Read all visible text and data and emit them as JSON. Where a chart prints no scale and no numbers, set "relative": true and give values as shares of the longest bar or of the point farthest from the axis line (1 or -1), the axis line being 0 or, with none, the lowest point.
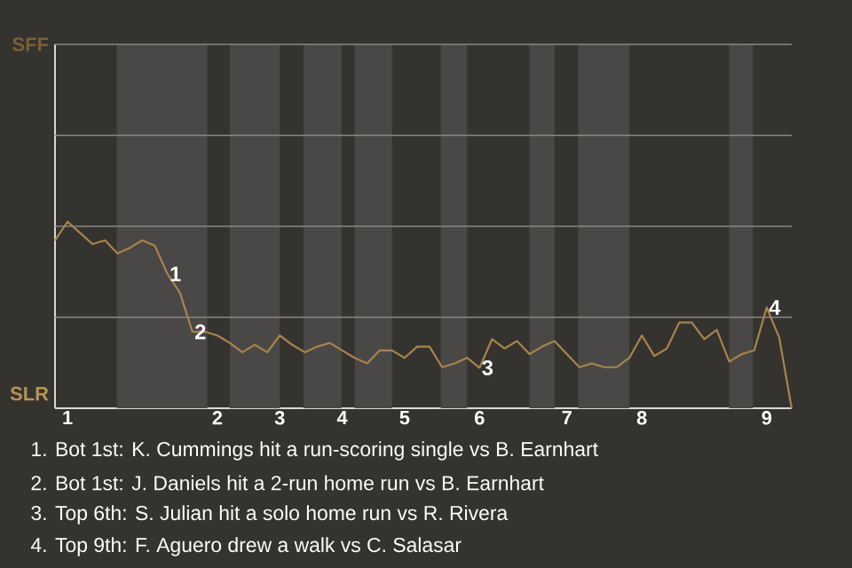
{
  "chart_data": {
    "type": "line",
    "relative": true,
    "categories": [
      null,
      "1",
      null,
      null,
      null,
      null,
      null,
      null,
      null,
      null,
      null,
      null,
      null,
      "2",
      null,
      null,
      null,
      null,
      "3",
      null,
      null,
      null,
      null,
      "4",
      null,
      null,
      null,
      null,
      "5",
      null,
      null,
      null,
      null,
      null,
      "6",
      null,
      null,
      null,
      null,
      null,
      null,
      "7",
      null,
      null,
      null,
      null,
      null,
      "8",
      null,
      null,
      null,
      null,
      null,
      null,
      null,
      null,
      null,
      "9",
      null,
      null
    ],
    "series": [
      {
        "color": "#a8844a",
        "values": [
          0.9,
          1,
          0.94,
          0.88,
          0.9,
          0.83,
          0.86,
          0.9,
          0.87,
          0.72,
          0.62,
          0.41,
          0.41,
          0.39,
          0.35,
          0.3,
          0.34,
          0.3,
          0.39,
          0.34,
          0.3,
          0.33,
          0.35,
          0.31,
          0.27,
          0.24,
          0.31,
          0.31,
          0.27,
          0.33,
          0.33,
          0.22,
          0.24,
          0.27,
          0.217,
          0.37,
          0.32,
          0.36,
          0.29,
          0.33,
          0.36,
          0.29,
          0.22,
          0.24,
          0.22,
          0.22,
          0.27,
          0.39,
          0.28,
          0.32,
          0.46,
          0.46,
          0.37,
          0.42,
          0.25,
          0.29,
          0.31,
          0.54,
          0.38,
          0
        ]
      }
    ],
    "ref_lines": [
      {
        "axis": "y",
        "value": 0.4875,
        "color": "#8a8885"
      },
      {
        "axis": "y",
        "value": 0.975,
        "color": "#8a8885"
      },
      {
        "axis": "y",
        "value": 1.4625,
        "color": "#8a8885"
      }
    ],
    "annotations": [
      "SFF",
      "SLR",
      {
        "text": "1",
        "y": 0.72
      },
      {
        "text": "2",
        "y": 0.41
      },
      {
        "text": "3",
        "y": 0.217
      },
      {
        "text": "4",
        "y": 0.54
      },
      "1. Bot 1st: K. Cummings hit a run-scoring single vs B. Earnhart",
      "2. Bot 1st: J. Daniels hit a 2-run home run vs B. Earnhart",
      "3. Top 6th: S. Julian hit a solo home run vs R. Rivera",
      "4. Top 9th: F. Aguero drew a walk vs C. Salasar"
    ]
  }
}
